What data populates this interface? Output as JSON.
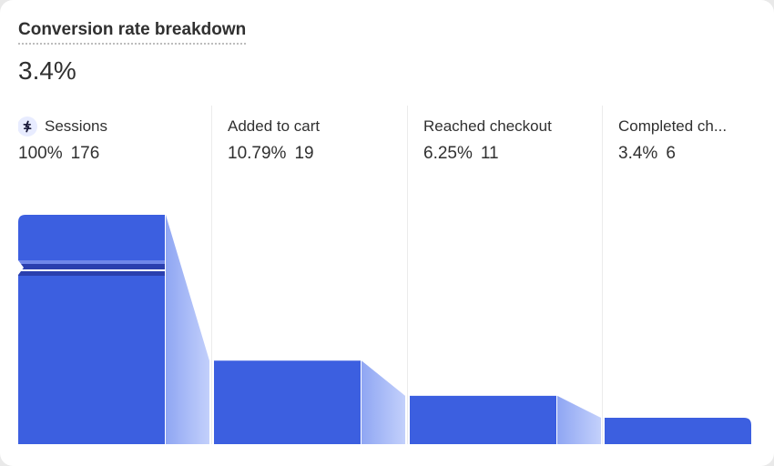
{
  "header": {
    "title": "Conversion rate breakdown",
    "metric": "3.4%"
  },
  "colors": {
    "bar": "#3c5fe0",
    "connector_light": "#c3d0fb",
    "connector_dark": "#8fa6f3",
    "text": "#303030"
  },
  "icons": {
    "sessions": "shopify-flow-icon"
  },
  "steps": [
    {
      "label": "Sessions",
      "percent": "100%",
      "count": "176"
    },
    {
      "label": "Added to cart",
      "percent": "10.79%",
      "count": "19"
    },
    {
      "label": "Reached checkout",
      "percent": "6.25%",
      "count": "11"
    },
    {
      "label": "Completed ch...",
      "percent": "3.4%",
      "count": "6"
    }
  ],
  "chart_data": {
    "type": "bar",
    "categories": [
      "Sessions",
      "Added to cart",
      "Reached checkout",
      "Completed checkout"
    ],
    "values": [
      176,
      19,
      11,
      6
    ],
    "percentages": [
      100,
      10.79,
      6.25,
      3.4
    ],
    "broken_axis": true
  }
}
